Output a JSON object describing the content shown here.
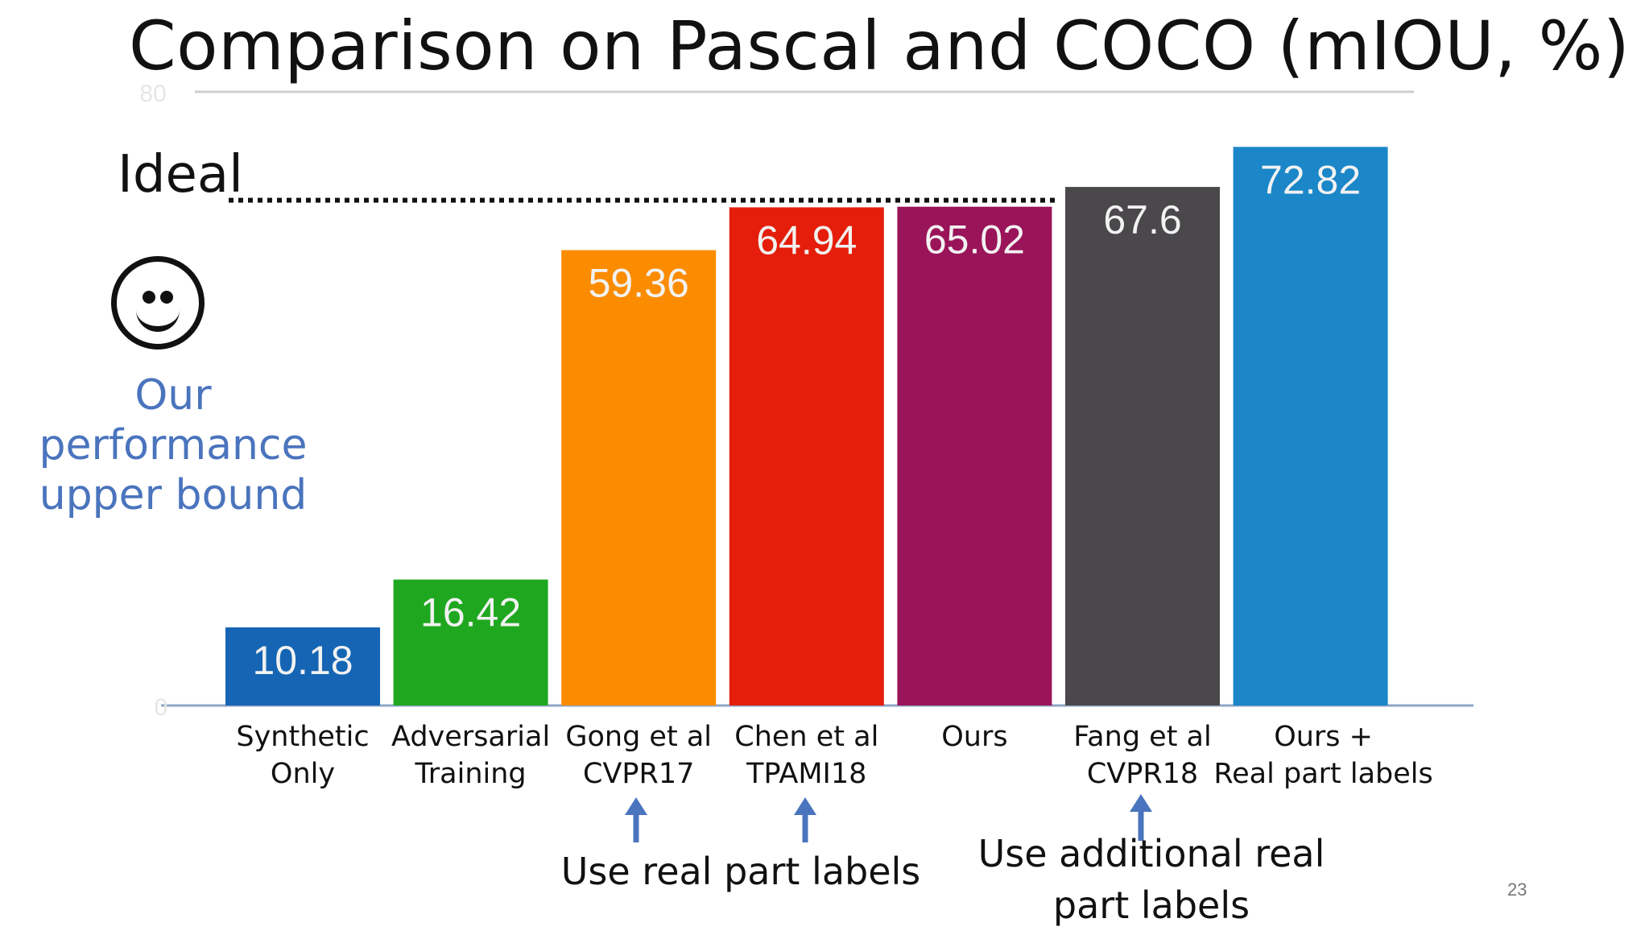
{
  "slide": {
    "ideal_label": "Ideal",
    "upper_bound_note": [
      "Our performance",
      "upper bound"
    ],
    "annotation_real": "Use real part labels",
    "annotation_additional": [
      "Use additional real",
      "part labels"
    ],
    "page_number": "23",
    "smiley_icon": "smiley-face-icon",
    "arrow_color": "#4a74bd"
  },
  "chart_data": {
    "type": "bar",
    "title": "Comparison on Pascal and COCO (mIOU, %)",
    "categories": [
      [
        "Synthetic",
        "Only"
      ],
      [
        "Adversarial",
        "Training"
      ],
      [
        "Gong et al",
        "CVPR17"
      ],
      [
        "Chen et al",
        "TPAMI18"
      ],
      [
        "Ours"
      ],
      [
        "Fang et al",
        "CVPR18"
      ],
      [
        "Ours +",
        "Real part labels"
      ]
    ],
    "values": [
      10.18,
      16.42,
      59.36,
      64.94,
      65.02,
      67.6,
      72.82
    ],
    "value_labels": [
      "10.18",
      "16.42",
      "59.36",
      "64.94",
      "65.02",
      "67.6",
      "72.82"
    ],
    "colors": [
      "#1565b4",
      "#1fa81f",
      "#fb8c00",
      "#e41e0a",
      "#9a1459",
      "#4a484b",
      "#1b86c8"
    ],
    "ylim": [
      0,
      80
    ],
    "tick_labels": [
      "0",
      "80"
    ],
    "ideal_value": 65.02,
    "grid": false,
    "xlabel": "",
    "ylabel": ""
  }
}
